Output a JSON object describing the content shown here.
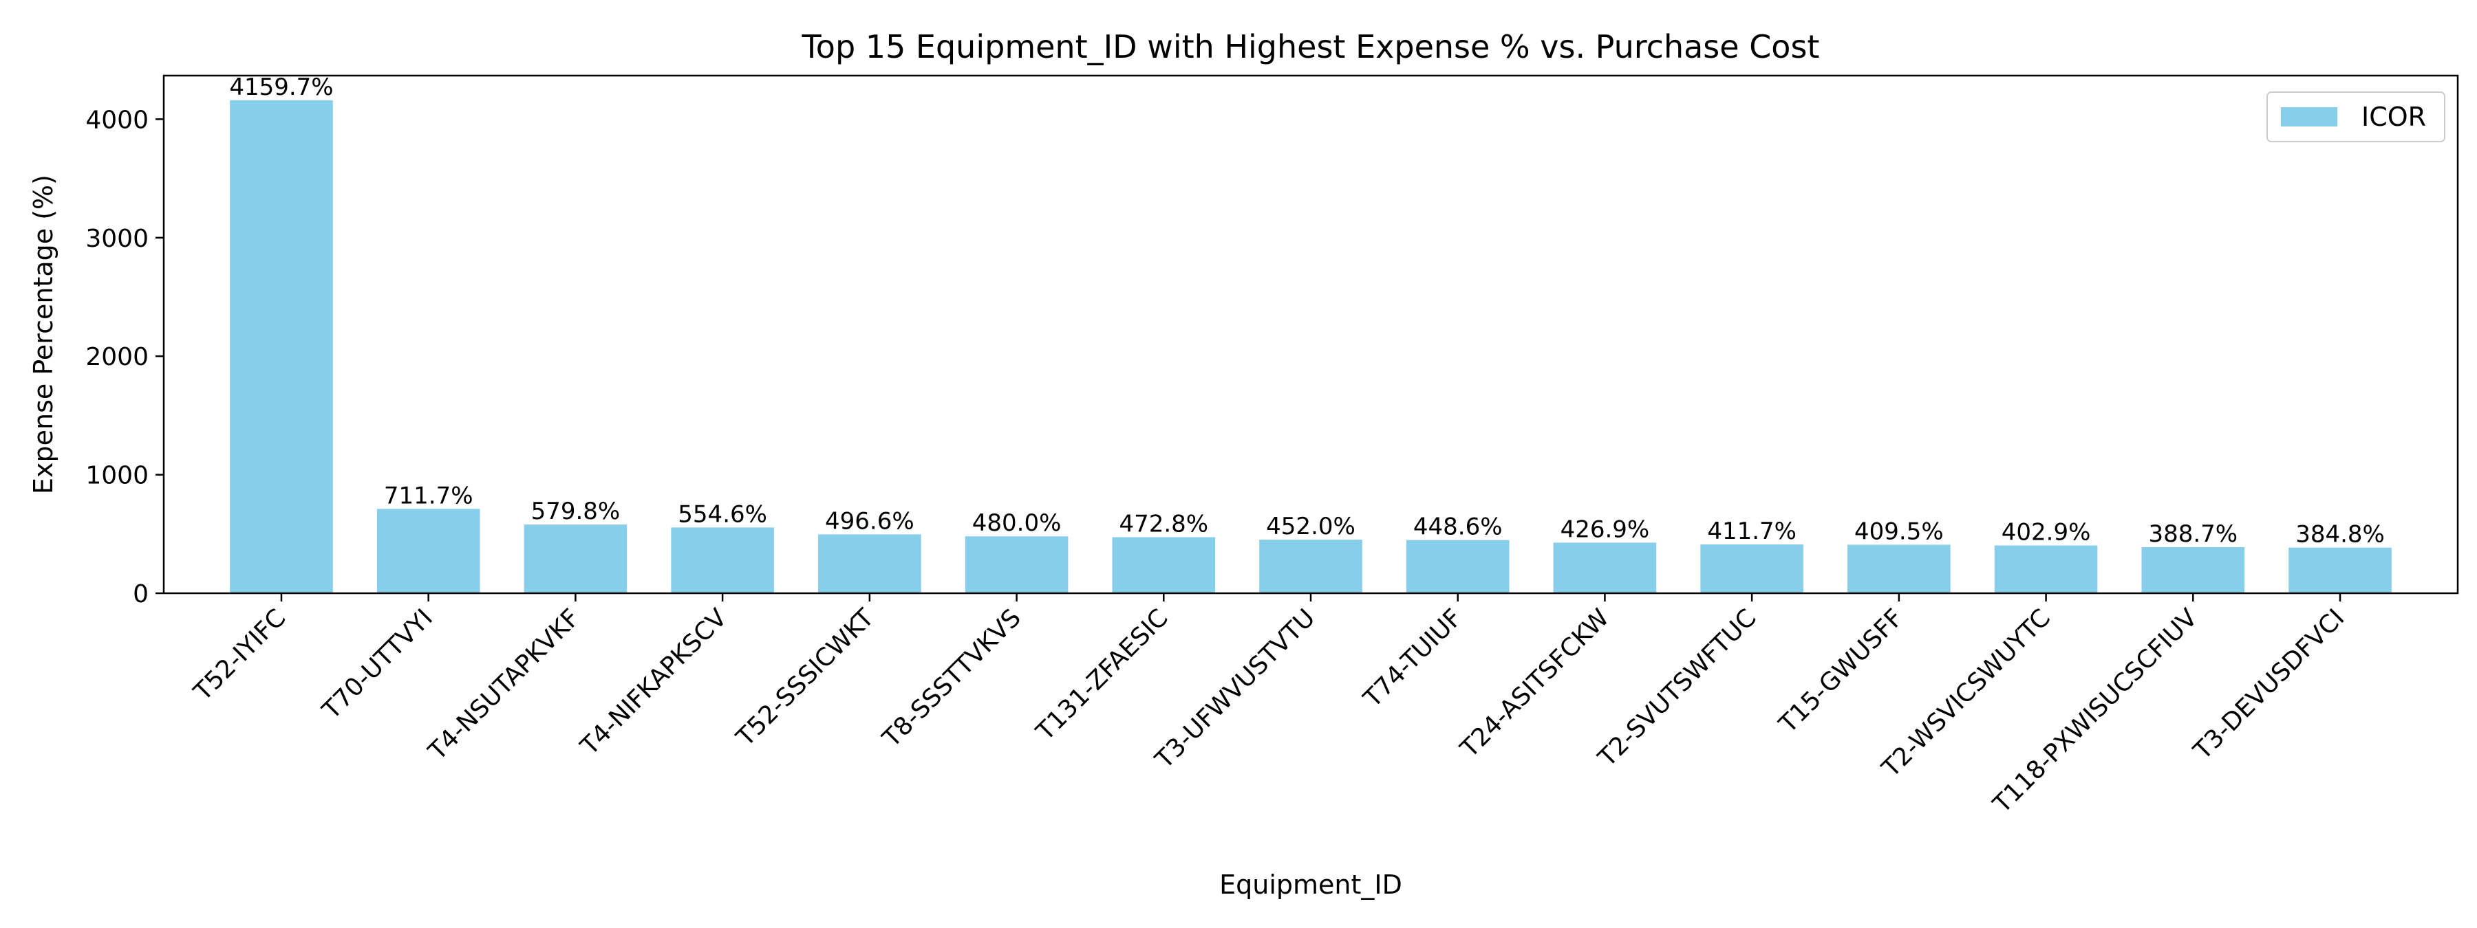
{
  "chart_data": {
    "type": "bar",
    "title": "Top 15 Equipment_ID with Highest Expense % vs. Purchase Cost",
    "xlabel": "Equipment_ID",
    "ylabel": "Expense Percentage (%)",
    "categories": [
      "T52-IYIFC",
      "T70-UTTVYI",
      "T4-NSUTAPKVKF",
      "T4-NIFKAPKSCV",
      "T52-SSSICWKT",
      "T8-SSSTTVKVS",
      "T131-ZFAESIC",
      "T3-UFWVUSTVTU",
      "T74-TUIUF",
      "T24-ASITSFCKW",
      "T2-SVUTSWFTUC",
      "T15-GWUSFF",
      "T2-WSVICSWUYTC",
      "T118-PXWISUCSCFIUV",
      "T3-DEVUSDFVCI"
    ],
    "series": [
      {
        "name": "ICOR",
        "color": "#87CEEB",
        "values": [
          4159.7,
          711.7,
          579.8,
          554.6,
          496.6,
          480.0,
          472.8,
          452.0,
          448.6,
          426.9,
          411.7,
          409.5,
          402.9,
          388.7,
          384.8
        ],
        "labels": [
          "4159.7%",
          "711.7%",
          "579.8%",
          "554.6%",
          "496.6%",
          "480.0%",
          "472.8%",
          "452.0%",
          "448.6%",
          "426.9%",
          "411.7%",
          "409.5%",
          "402.9%",
          "388.7%",
          "384.8%"
        ]
      }
    ],
    "yticks": [
      0,
      1000,
      2000,
      3000,
      4000
    ],
    "ylim": [
      0,
      4367.7
    ],
    "grid": false,
    "legend_position": "top-right"
  }
}
